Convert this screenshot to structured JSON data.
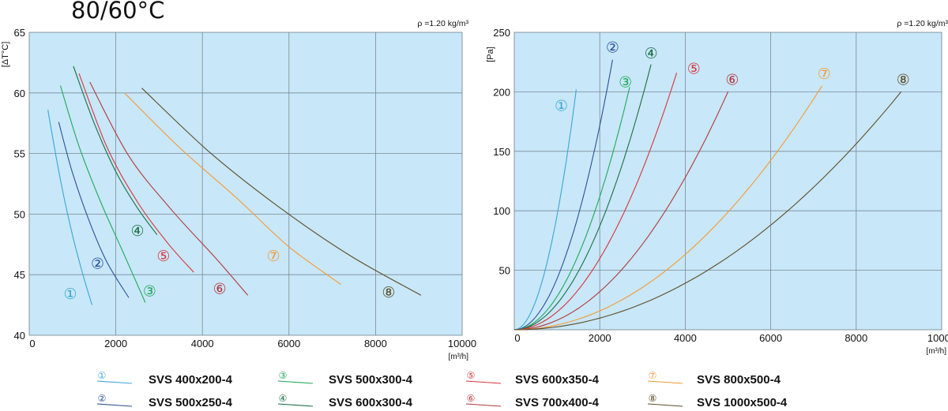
{
  "page_title": "80/60°C",
  "chart_data": [
    {
      "type": "line",
      "density_note": "ρ =1.20 kg/m³",
      "ylabel": "[ΔT°C]",
      "xlabel": "[m³/h]",
      "xlim": [
        0,
        10000
      ],
      "ylim": [
        40,
        65
      ],
      "xticks": [
        0,
        2000,
        4000,
        6000,
        8000,
        10000
      ],
      "yticks": [
        40,
        45,
        50,
        55,
        60,
        65
      ],
      "grid": true,
      "series": [
        {
          "name": "SVS 400x200-4",
          "marker": "①",
          "color": "#3aa6d4",
          "x": [
            430,
            700,
            950,
            1200,
            1450
          ],
          "y": [
            58.6,
            53.2,
            49.0,
            45.5,
            42.5
          ]
        },
        {
          "name": "SVS 500x250-4",
          "marker": "②",
          "color": "#2d4f9a",
          "x": [
            680,
            1000,
            1400,
            1800,
            2300
          ],
          "y": [
            57.6,
            53.4,
            49.3,
            46.0,
            43.1
          ]
        },
        {
          "name": "SVS 500x300-4",
          "marker": "③",
          "color": "#1fa85a",
          "x": [
            720,
            1150,
            1650,
            2150,
            2680
          ],
          "y": [
            60.6,
            55.6,
            51.0,
            47.0,
            42.7
          ]
        },
        {
          "name": "SVS 600x300-4",
          "marker": "④",
          "color": "#1b6e44",
          "x": [
            1020,
            1500,
            2000,
            2500,
            2950
          ],
          "y": [
            62.2,
            57.5,
            53.5,
            50.5,
            48.3
          ]
        },
        {
          "name": "SVS 600x350-4",
          "marker": "⑤",
          "color": "#d8343c",
          "x": [
            1150,
            1800,
            2500,
            3200,
            3800
          ],
          "y": [
            61.6,
            55.5,
            51.0,
            47.6,
            45.2
          ]
        },
        {
          "name": "SVS 700x400-4",
          "marker": "⑥",
          "color": "#b1383c",
          "x": [
            1400,
            2300,
            3300,
            4300,
            5050
          ],
          "y": [
            60.9,
            54.8,
            50.3,
            46.4,
            43.3
          ]
        },
        {
          "name": "SVS 800x500-4",
          "marker": "⑦",
          "color": "#f59a36",
          "x": [
            2200,
            3500,
            4800,
            6000,
            7200
          ],
          "y": [
            60.0,
            55.4,
            51.3,
            47.3,
            44.2
          ]
        },
        {
          "name": "SVS 1000x500-4",
          "marker": "⑧",
          "color": "#5c4e2a",
          "x": [
            2600,
            4200,
            5800,
            7400,
            9050
          ],
          "y": [
            60.4,
            55.0,
            50.5,
            46.6,
            43.3
          ]
        }
      ],
      "annotations": [
        {
          "text": "①",
          "x": 950,
          "y": 43.4
        },
        {
          "text": "②",
          "x": 1580,
          "y": 45.9
        },
        {
          "text": "③",
          "x": 2780,
          "y": 43.6
        },
        {
          "text": "④",
          "x": 2500,
          "y": 48.6
        },
        {
          "text": "⑤",
          "x": 3100,
          "y": 46.5
        },
        {
          "text": "⑥",
          "x": 4400,
          "y": 43.8
        },
        {
          "text": "⑦",
          "x": 5640,
          "y": 46.5
        },
        {
          "text": "⑧",
          "x": 8300,
          "y": 43.5
        }
      ]
    },
    {
      "type": "line",
      "density_note": "ρ =1.20 kg/m³",
      "ylabel": "[Pa]",
      "xlabel": "[m³/h]",
      "xlim": [
        0,
        10000
      ],
      "ylim": [
        0,
        250
      ],
      "xticks": [
        0,
        2000,
        4000,
        6000,
        8000,
        10000
      ],
      "yticks": [
        50,
        100,
        150,
        200,
        250
      ],
      "grid": true,
      "series": [
        {
          "name": "SVS 400x200-4",
          "marker": "①",
          "color": "#3aa6d4",
          "max_x": 1450,
          "max_y": 202
        },
        {
          "name": "SVS 500x250-4",
          "marker": "②",
          "color": "#2d4f9a",
          "max_x": 2300,
          "max_y": 227
        },
        {
          "name": "SVS 500x300-4",
          "marker": "③",
          "color": "#1fa85a",
          "max_x": 2700,
          "max_y": 204
        },
        {
          "name": "SVS 600x300-4",
          "marker": "④",
          "color": "#1b6e44",
          "max_x": 3200,
          "max_y": 223
        },
        {
          "name": "SVS 600x350-4",
          "marker": "⑤",
          "color": "#d8343c",
          "max_x": 3800,
          "max_y": 216
        },
        {
          "name": "SVS 700x400-4",
          "marker": "⑥",
          "color": "#b1383c",
          "max_x": 5000,
          "max_y": 200
        },
        {
          "name": "SVS 800x500-4",
          "marker": "⑦",
          "color": "#f59a36",
          "max_x": 7200,
          "max_y": 205
        },
        {
          "name": "SVS 1000x500-4",
          "marker": "⑧",
          "color": "#5c4e2a",
          "max_x": 9050,
          "max_y": 200
        }
      ],
      "annotations": [
        {
          "text": "①",
          "x": 1100,
          "y": 188
        },
        {
          "text": "②",
          "x": 2300,
          "y": 237
        },
        {
          "text": "③",
          "x": 2600,
          "y": 208
        },
        {
          "text": "④",
          "x": 3200,
          "y": 232
        },
        {
          "text": "⑤",
          "x": 4200,
          "y": 219
        },
        {
          "text": "⑥",
          "x": 5100,
          "y": 210
        },
        {
          "text": "⑦",
          "x": 7250,
          "y": 215
        },
        {
          "text": "⑧",
          "x": 9100,
          "y": 210
        }
      ]
    }
  ],
  "legend": [
    {
      "marker": "①",
      "label": "SVS 400x200-4",
      "color": "#3aa6d4"
    },
    {
      "marker": "②",
      "label": "SVS 500x250-4",
      "color": "#2d4f9a"
    },
    {
      "marker": "③",
      "label": "SVS 500x300-4",
      "color": "#1fa85a"
    },
    {
      "marker": "④",
      "label": "SVS 600x300-4",
      "color": "#1b6e44"
    },
    {
      "marker": "⑤",
      "label": "SVS 600x350-4",
      "color": "#d8343c"
    },
    {
      "marker": "⑥",
      "label": "SVS 700x400-4",
      "color": "#b1383c"
    },
    {
      "marker": "⑦",
      "label": "SVS 800x500-4",
      "color": "#f59a36"
    },
    {
      "marker": "⑧",
      "label": "SVS 1000x500-4",
      "color": "#5c4e2a"
    }
  ]
}
